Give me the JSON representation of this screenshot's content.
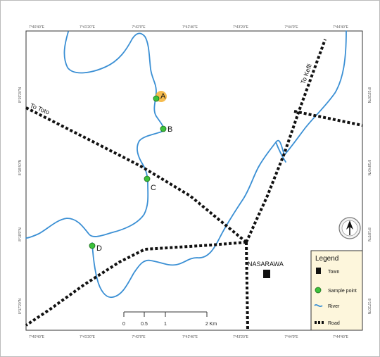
{
  "ticks": {
    "top": [
      "7°40'40\"E",
      "7°41'20\"E",
      "7°42'0\"E",
      "7°42'40\"E",
      "7°43'20\"E",
      "7°44'0\"E",
      "7°44'40\"E"
    ],
    "bottom": [
      "7°40'40\"E",
      "7°41'20\"E",
      "7°42'0\"E",
      "7°42'40\"E",
      "7°43'20\"E",
      "7°44'0\"E",
      "7°44'40\"E"
    ],
    "left": [
      "8°19'20\"N",
      "8°18'40\"N",
      "8°18'0\"N",
      "8°17'20\"N",
      "8°16'40\"N"
    ],
    "right": [
      "8°19'20\"N",
      "8°18'40\"N",
      "8°18'0\"N",
      "8°17'20\"N",
      "8°16'40\"N"
    ]
  },
  "roads": {
    "to_toto": "To Toto",
    "to_keffi": "To Keffi"
  },
  "town": {
    "name": "NASARAWA"
  },
  "sample_points": [
    {
      "id": "A",
      "highlighted": true
    },
    {
      "id": "B",
      "highlighted": false
    },
    {
      "id": "C",
      "highlighted": false
    },
    {
      "id": "D",
      "highlighted": false
    }
  ],
  "legend": {
    "title": "Legend",
    "items": [
      {
        "symbol": "square",
        "label": "Town"
      },
      {
        "symbol": "green-dot",
        "label": "Sample point"
      },
      {
        "symbol": "blue-line",
        "label": "River"
      },
      {
        "symbol": "dotted-line",
        "label": "Road"
      }
    ]
  },
  "scale_bar": {
    "labels": [
      "0",
      "0.5",
      "1",
      "2 Km"
    ]
  },
  "north_arrow": {
    "icon": "north-arrow-icon"
  },
  "colors": {
    "river": "#3a8fd4",
    "road": "#111111",
    "sample_point": "#3cc23c",
    "highlight": "#f4b030",
    "legend_bg": "#fdf6dc",
    "town": "#111111"
  }
}
